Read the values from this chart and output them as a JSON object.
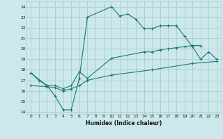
{
  "title": "",
  "xlabel": "Humidex (Indice chaleur)",
  "bg_color": "#cce8ec",
  "grid_color": "#aacccc",
  "line_color": "#1a7a6e",
  "xlim": [
    -0.5,
    23.5
  ],
  "ylim": [
    13.8,
    24.5
  ],
  "xticks": [
    0,
    1,
    2,
    3,
    4,
    5,
    6,
    7,
    8,
    9,
    10,
    11,
    12,
    13,
    14,
    15,
    16,
    17,
    18,
    19,
    20,
    21,
    22,
    23
  ],
  "yticks": [
    14,
    15,
    16,
    17,
    18,
    19,
    20,
    21,
    22,
    23,
    24
  ],
  "c1x": [
    0,
    1,
    2,
    3,
    4,
    5,
    6,
    7,
    10,
    11,
    12,
    13,
    14,
    15,
    16,
    17,
    18,
    19,
    20,
    21,
    22,
    23
  ],
  "c1y": [
    17.7,
    17.0,
    16.5,
    15.5,
    14.2,
    14.2,
    17.2,
    23.0,
    24.0,
    23.1,
    23.3,
    22.8,
    21.9,
    21.9,
    22.2,
    22.2,
    22.2,
    21.2,
    20.2,
    19.0,
    19.7,
    19.0
  ],
  "c2x": [
    0,
    2,
    3,
    4,
    5,
    6,
    7,
    10,
    14,
    15,
    16,
    17,
    18,
    19,
    20,
    21
  ],
  "c2y": [
    17.7,
    16.5,
    16.5,
    16.2,
    16.5,
    17.8,
    17.2,
    19.1,
    19.7,
    19.7,
    19.9,
    20.0,
    20.1,
    20.2,
    20.3,
    20.3
  ],
  "c3x": [
    0,
    2,
    3,
    4,
    5,
    6,
    7,
    10,
    15,
    20,
    23
  ],
  "c3y": [
    16.5,
    16.4,
    16.3,
    16.0,
    16.2,
    16.5,
    17.0,
    17.5,
    18.0,
    18.6,
    18.8
  ]
}
